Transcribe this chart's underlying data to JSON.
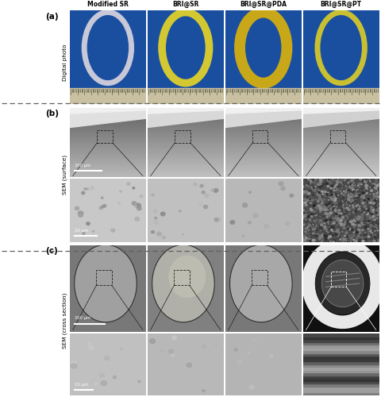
{
  "col_labels": [
    "Modified SR",
    "BRI@SR",
    "BRI@SR@PDA",
    "BRI@SR@PT"
  ],
  "row_labels_a": "Digital photo",
  "row_labels_b": "SEM (surface)",
  "row_labels_c": "SEM (cross section)",
  "panel_labels": [
    "(a)",
    "(b)",
    "(c)"
  ],
  "scale_bar_b_top": "300 μm",
  "scale_bar_b_bot": "20 μm",
  "scale_bar_c_top": "300 μm",
  "scale_bar_c_bot": "10 μm",
  "bg_color": "#ffffff",
  "photo_bg": "#1a4fa0",
  "ruler_bg": "#c8c0a0",
  "ruler_tick_color": "#404030",
  "ring_stroke_colors": [
    "#c8c8d8",
    "#d4c832",
    "#c8a818",
    "#c8c032"
  ],
  "ring_linewidths": [
    5,
    7,
    10,
    5
  ],
  "sem_b_top_grad_top": [
    "#b8b8b8",
    "#c0c0c0",
    "#c0c0c0",
    "#c8c8c8"
  ],
  "sem_b_top_grad_bot": [
    "#606060",
    "#686868",
    "#686868",
    "#707070"
  ],
  "sem_b_top_bright_band": [
    "#e0e0e0",
    "#d8d8d8",
    "#d8d8d8",
    "#d0d0d0"
  ],
  "sem_b_bot_color": [
    "#c8c8c8",
    "#c0c0c0",
    "#b8b8b8",
    "#484848"
  ],
  "sem_c_bg": [
    "#787878",
    "#808080",
    "#787878",
    "#181818"
  ],
  "sem_c_disk_color": [
    "#a0a0a0",
    "#b0b0a8",
    "#a8a8a8"
  ],
  "sem_c_disk_bg": [
    "#686868",
    "#707068",
    "#686868"
  ],
  "sem_c_bot_color": [
    "#c0c0c0",
    "#b8b8b8",
    "#b4b4b4",
    "#909090"
  ],
  "dashed_color": "#606060"
}
